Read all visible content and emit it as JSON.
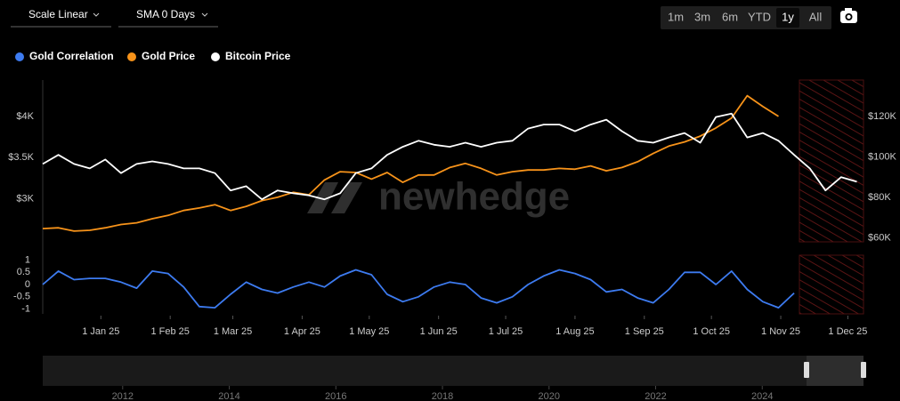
{
  "controls": {
    "scale": "Scale Linear",
    "sma": "SMA 0 Days",
    "ranges": [
      "1m",
      "3m",
      "6m",
      "YTD",
      "1y",
      "All"
    ],
    "selected_range": 4
  },
  "watermark": "newhedge",
  "chart_data": [
    {
      "type": "line",
      "x": [
        "2024-12-06",
        "2024-12-13",
        "2024-12-20",
        "2024-12-27",
        "2025-01-03",
        "2025-01-10",
        "2025-01-17",
        "2025-01-24",
        "2025-01-31",
        "2025-02-07",
        "2025-02-14",
        "2025-02-21",
        "2025-02-28",
        "2025-03-07",
        "2025-03-14",
        "2025-03-21",
        "2025-03-28",
        "2025-04-04",
        "2025-04-11",
        "2025-04-18",
        "2025-04-25",
        "2025-05-02",
        "2025-05-09",
        "2025-05-16",
        "2025-05-23",
        "2025-05-30",
        "2025-06-06",
        "2025-06-13",
        "2025-06-20",
        "2025-06-27",
        "2025-07-04",
        "2025-07-11",
        "2025-07-18",
        "2025-07-25",
        "2025-08-01",
        "2025-08-08",
        "2025-08-15",
        "2025-08-22",
        "2025-08-29",
        "2025-09-05",
        "2025-09-12",
        "2025-09-19",
        "2025-09-26",
        "2025-10-03",
        "2025-10-10",
        "2025-10-17",
        "2025-10-24",
        "2025-10-31",
        "2025-11-07",
        "2025-11-14",
        "2025-11-21",
        "2025-11-28",
        "2025-12-05"
      ],
      "xlim": [
        "2024-12-06",
        "2025-12-08"
      ],
      "series": [
        {
          "name": "Gold Price",
          "color": "#f7931a",
          "values": [
            2640,
            2650,
            2610,
            2620,
            2650,
            2690,
            2710,
            2760,
            2800,
            2860,
            2890,
            2930,
            2860,
            2910,
            2980,
            3020,
            3080,
            3050,
            3230,
            3330,
            3320,
            3240,
            3320,
            3200,
            3290,
            3290,
            3380,
            3430,
            3370,
            3290,
            3330,
            3350,
            3350,
            3370,
            3360,
            3400,
            3340,
            3380,
            3450,
            3550,
            3640,
            3690,
            3760,
            3860,
            3980,
            4250,
            4120,
            4000,
            null,
            null,
            null,
            null,
            null
          ]
        },
        {
          "name": "Bitcoin Price",
          "color": "#ffffff",
          "axis": "y2",
          "values": [
            96500,
            101000,
            96500,
            94300,
            98700,
            92000,
            96500,
            97800,
            96500,
            94300,
            94300,
            92000,
            83400,
            85500,
            79000,
            83400,
            82000,
            81000,
            79000,
            82000,
            92000,
            94300,
            101000,
            105000,
            108000,
            106000,
            105000,
            107000,
            105000,
            107000,
            108000,
            114000,
            116000,
            116000,
            112700,
            116000,
            118400,
            112700,
            108000,
            107000,
            109600,
            111800,
            107000,
            119700,
            121400,
            109600,
            111800,
            108000,
            101000,
            94300,
            83400,
            90000,
            87700
          ]
        }
      ],
      "ylim": [
        2480,
        4440
      ],
      "yticks": [
        {
          "value": 3000,
          "label": "$3K"
        },
        {
          "value": 3500,
          "label": "$3.5K"
        },
        {
          "value": 4000,
          "label": "$4K"
        }
      ],
      "y2lim": [
        58000,
        138000
      ],
      "y2ticks": [
        {
          "value": 60000,
          "label": "$60K"
        },
        {
          "value": 80000,
          "label": "$80K"
        },
        {
          "value": 100000,
          "label": "$100K"
        },
        {
          "value": 120000,
          "label": "$120K"
        }
      ]
    },
    {
      "type": "line",
      "x": [
        "2024-12-06",
        "2024-12-13",
        "2024-12-20",
        "2024-12-27",
        "2025-01-03",
        "2025-01-10",
        "2025-01-17",
        "2025-01-24",
        "2025-01-31",
        "2025-02-07",
        "2025-02-14",
        "2025-02-21",
        "2025-02-28",
        "2025-03-07",
        "2025-03-14",
        "2025-03-21",
        "2025-03-28",
        "2025-04-04",
        "2025-04-11",
        "2025-04-18",
        "2025-04-25",
        "2025-05-02",
        "2025-05-09",
        "2025-05-16",
        "2025-05-23",
        "2025-05-30",
        "2025-06-06",
        "2025-06-13",
        "2025-06-20",
        "2025-06-27",
        "2025-07-04",
        "2025-07-11",
        "2025-07-18",
        "2025-07-25",
        "2025-08-01",
        "2025-08-08",
        "2025-08-15",
        "2025-08-22",
        "2025-08-29",
        "2025-09-05",
        "2025-09-12",
        "2025-09-19",
        "2025-09-26",
        "2025-10-03",
        "2025-10-10",
        "2025-10-17",
        "2025-10-24",
        "2025-10-31",
        "2025-11-07",
        "2025-11-14",
        "2025-11-21",
        "2025-11-28",
        "2025-12-05"
      ],
      "xlim": [
        "2024-12-06",
        "2025-12-08"
      ],
      "xticks": [
        {
          "value": "2025-01-01",
          "label": "1 Jan 25"
        },
        {
          "value": "2025-02-01",
          "label": "1 Feb 25"
        },
        {
          "value": "2025-03-01",
          "label": "1 Mar 25"
        },
        {
          "value": "2025-04-01",
          "label": "1 Apr 25"
        },
        {
          "value": "2025-05-01",
          "label": "1 May 25"
        },
        {
          "value": "2025-06-01",
          "label": "1 Jun 25"
        },
        {
          "value": "2025-07-01",
          "label": "1 Jul 25"
        },
        {
          "value": "2025-08-01",
          "label": "1 Aug 25"
        },
        {
          "value": "2025-09-01",
          "label": "1 Sep 25"
        },
        {
          "value": "2025-10-01",
          "label": "1 Oct 25"
        },
        {
          "value": "2025-11-01",
          "label": "1 Nov 25"
        },
        {
          "value": "2025-12-01",
          "label": "1 Dec 25"
        }
      ],
      "series": [
        {
          "name": "Gold Correlation",
          "color": "#3d7bf0",
          "values": [
            0.0,
            0.55,
            0.2,
            0.25,
            0.25,
            0.1,
            -0.15,
            0.55,
            0.45,
            -0.1,
            -0.9,
            -0.95,
            -0.4,
            0.1,
            -0.2,
            -0.35,
            -0.1,
            0.1,
            -0.1,
            0.35,
            0.6,
            0.4,
            -0.4,
            -0.7,
            -0.5,
            -0.1,
            0.1,
            0.0,
            -0.55,
            -0.75,
            -0.5,
            0.0,
            0.35,
            0.6,
            0.45,
            0.2,
            -0.3,
            -0.2,
            -0.55,
            -0.75,
            -0.2,
            0.5,
            0.5,
            0.0,
            0.55,
            -0.2,
            -0.7,
            -0.95,
            -0.35,
            null,
            null,
            null,
            null
          ]
        }
      ],
      "ylim": [
        -1.2,
        1.2
      ],
      "yticks": [
        -1,
        -0.5,
        0,
        0.5,
        1
      ]
    },
    {
      "type": "navigator",
      "xlim": [
        2010.5,
        2025.9
      ],
      "xticks": [
        2012,
        2014,
        2016,
        2018,
        2020,
        2022,
        2024
      ]
    }
  ]
}
